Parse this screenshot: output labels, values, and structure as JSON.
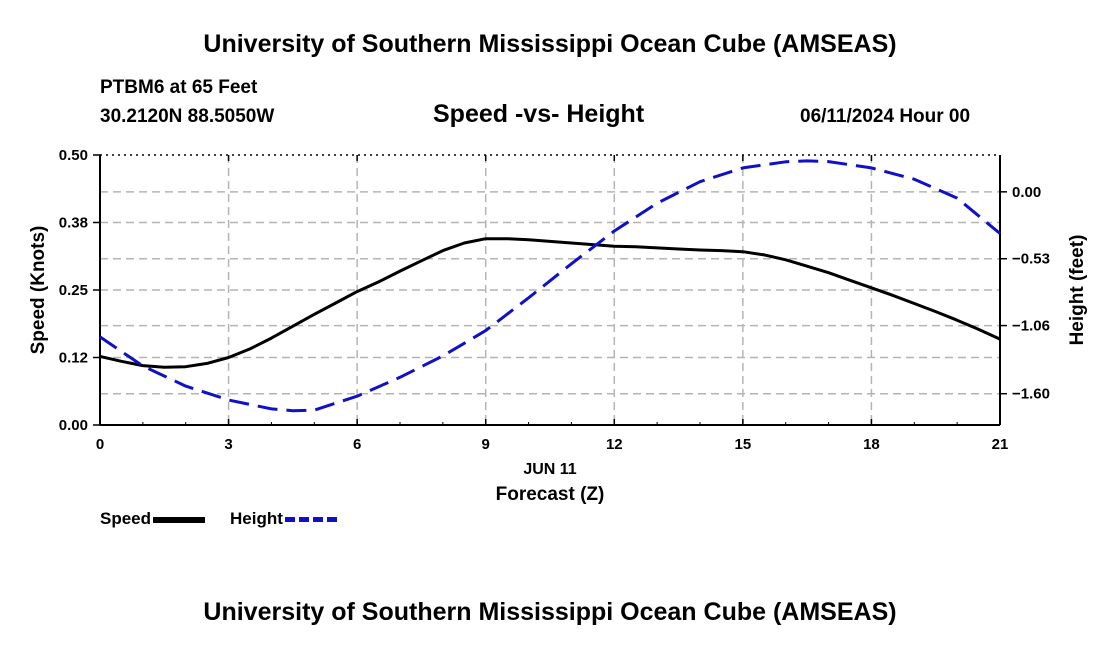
{
  "header": {
    "title": "University of Southern Mississippi Ocean Cube (AMSEAS)",
    "station": "PTBM6 at 65 Feet",
    "coords": "30.2120N  88.5050W",
    "subtitle": "Speed -vs- Height",
    "datetime": "06/11/2024 Hour 00"
  },
  "footer": {
    "title": "University of Southern Mississippi Ocean Cube (AMSEAS)"
  },
  "legend": {
    "speed_label": "Speed",
    "height_label": "Height"
  },
  "colors": {
    "speed": "#000000",
    "height": "#1010c8",
    "grid": "#b4b4b4"
  },
  "chart_data": {
    "type": "line",
    "xlabel": "Forecast (Z)",
    "date_label": "JUN 11",
    "ylabel_left": "Speed (Knots)",
    "ylabel_right": "Height (feet)",
    "xlim": [
      0,
      21
    ],
    "ylim_left": [
      0,
      0.5
    ],
    "ylim_right": [
      -1.848,
      0.292
    ],
    "x_ticks": [
      0,
      3,
      6,
      9,
      12,
      15,
      18,
      21
    ],
    "x_tick_labels": [
      "0",
      "3",
      "6",
      "9",
      "12",
      "15",
      "18",
      "21"
    ],
    "y_left_ticks": [
      0,
      0.125,
      0.25,
      0.375,
      0.5
    ],
    "y_left_tick_labels": [
      "0.00",
      "0.12",
      "0.25",
      "0.38",
      "0.50"
    ],
    "y_right_ticks": [
      0.0,
      -0.53,
      -1.06,
      -1.6
    ],
    "y_right_tick_labels": [
      "0.00",
      "−0.53",
      "−1.06",
      "−1.60"
    ],
    "series": [
      {
        "name": "Speed",
        "axis": "left",
        "style": "solid",
        "x": [
          0,
          0.5,
          1,
          1.5,
          2,
          2.5,
          3,
          3.5,
          4,
          4.5,
          5,
          5.5,
          6,
          6.5,
          7,
          7.5,
          8,
          8.5,
          9,
          9.5,
          10,
          10.5,
          11,
          11.5,
          12,
          12.5,
          13,
          13.5,
          14,
          14.5,
          15,
          15.5,
          16,
          16.5,
          17,
          17.5,
          18,
          18.5,
          19,
          19.5,
          20,
          20.5,
          21
        ],
        "values": [
          0.127,
          0.118,
          0.11,
          0.107,
          0.108,
          0.114,
          0.125,
          0.141,
          0.161,
          0.183,
          0.205,
          0.226,
          0.247,
          0.265,
          0.285,
          0.304,
          0.323,
          0.337,
          0.345,
          0.345,
          0.343,
          0.34,
          0.337,
          0.334,
          0.331,
          0.33,
          0.328,
          0.326,
          0.324,
          0.323,
          0.321,
          0.315,
          0.306,
          0.294,
          0.282,
          0.268,
          0.254,
          0.24,
          0.225,
          0.21,
          0.194,
          0.177,
          0.159
        ]
      },
      {
        "name": "Height",
        "axis": "right",
        "style": "dashed",
        "x": [
          0,
          1,
          2,
          3,
          4,
          4.5,
          5,
          6,
          7,
          8,
          9,
          10,
          11,
          12,
          13,
          14,
          15,
          16,
          16.5,
          17,
          18,
          19,
          20,
          21
        ],
        "values": [
          -1.15,
          -1.38,
          -1.54,
          -1.65,
          -1.72,
          -1.735,
          -1.73,
          -1.62,
          -1.47,
          -1.3,
          -1.1,
          -0.84,
          -0.57,
          -0.31,
          -0.09,
          0.08,
          0.19,
          0.238,
          0.245,
          0.24,
          0.19,
          0.1,
          -0.05,
          -0.33
        ]
      }
    ]
  }
}
